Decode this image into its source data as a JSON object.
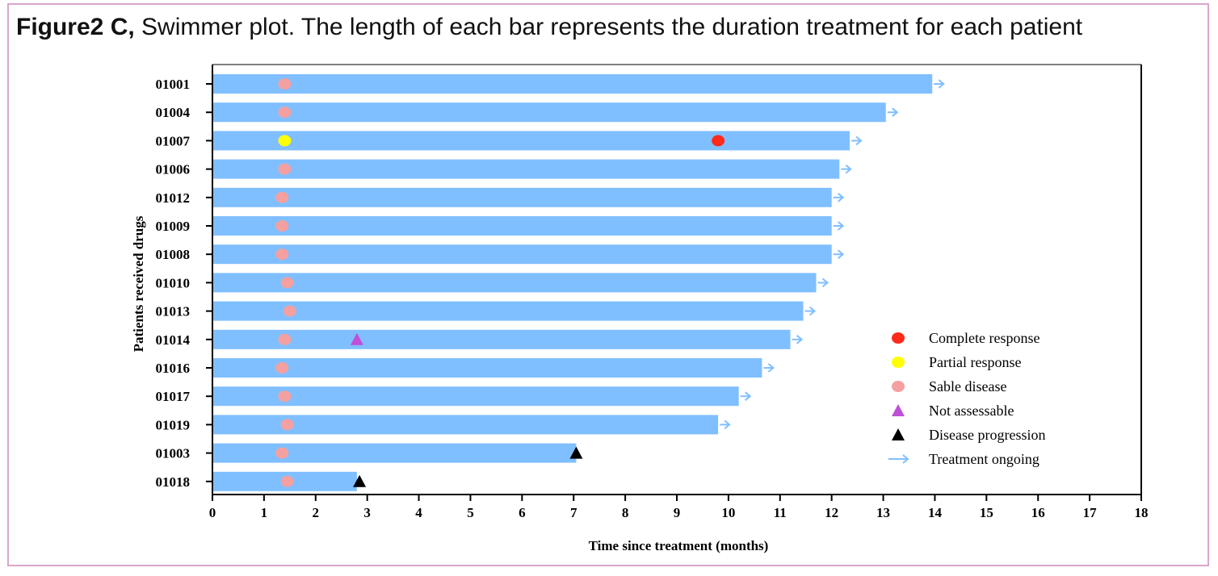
{
  "caption": {
    "label": "Figure2 C,",
    "text": "Swimmer plot. The length of each bar represents the duration treatment for each patient"
  },
  "chart_data": {
    "type": "bar",
    "orientation": "horizontal",
    "xlabel": "Time since treatment (months)",
    "ylabel": "Patients received drugs",
    "xlim": [
      0,
      18
    ],
    "xticks": [
      0,
      1,
      2,
      3,
      4,
      5,
      6,
      7,
      8,
      9,
      10,
      11,
      12,
      13,
      14,
      15,
      16,
      17,
      18
    ],
    "grid": false,
    "legend_position": "lower-right",
    "bar_color": "#80bfff",
    "categories": [
      "01001",
      "01004",
      "01007",
      "01006",
      "01012",
      "01009",
      "01008",
      "01010",
      "01013",
      "01014",
      "01016",
      "01017",
      "01019",
      "01003",
      "01018"
    ],
    "values": [
      13.95,
      13.05,
      12.35,
      12.15,
      12.0,
      12.0,
      12.0,
      11.7,
      11.45,
      11.2,
      10.65,
      10.2,
      9.8,
      7.05,
      2.8
    ],
    "ongoing": [
      true,
      true,
      true,
      true,
      true,
      true,
      true,
      true,
      true,
      true,
      true,
      true,
      true,
      false,
      false
    ],
    "events": [
      {
        "patient": "01001",
        "type": "stable",
        "time": 1.4
      },
      {
        "patient": "01004",
        "type": "stable",
        "time": 1.4
      },
      {
        "patient": "01007",
        "type": "partial",
        "time": 1.4
      },
      {
        "patient": "01007",
        "type": "complete",
        "time": 9.8
      },
      {
        "patient": "01006",
        "type": "stable",
        "time": 1.4
      },
      {
        "patient": "01012",
        "type": "stable",
        "time": 1.35
      },
      {
        "patient": "01009",
        "type": "stable",
        "time": 1.35
      },
      {
        "patient": "01008",
        "type": "stable",
        "time": 1.35
      },
      {
        "patient": "01010",
        "type": "stable",
        "time": 1.45
      },
      {
        "patient": "01013",
        "type": "stable",
        "time": 1.5
      },
      {
        "patient": "01014",
        "type": "stable",
        "time": 1.4
      },
      {
        "patient": "01014",
        "type": "not_assessable",
        "time": 2.8
      },
      {
        "patient": "01016",
        "type": "stable",
        "time": 1.35
      },
      {
        "patient": "01017",
        "type": "stable",
        "time": 1.4
      },
      {
        "patient": "01019",
        "type": "stable",
        "time": 1.45
      },
      {
        "patient": "01003",
        "type": "stable",
        "time": 1.35
      },
      {
        "patient": "01003",
        "type": "progression",
        "time": 7.05
      },
      {
        "patient": "01018",
        "type": "stable",
        "time": 1.45
      },
      {
        "patient": "01018",
        "type": "progression",
        "time": 2.85
      }
    ],
    "legend": [
      {
        "key": "complete",
        "label": "Complete response",
        "marker": "circle",
        "color": "#ff2a1a"
      },
      {
        "key": "partial",
        "label": "Partial response",
        "marker": "circle",
        "color": "#ffff00"
      },
      {
        "key": "stable",
        "label": "Sable disease",
        "marker": "circle",
        "color": "#f4a0a0"
      },
      {
        "key": "not_assessable",
        "label": "Not assessable",
        "marker": "triangle",
        "color": "#c04fd8"
      },
      {
        "key": "progression",
        "label": "Disease progression",
        "marker": "triangle",
        "color": "#000000"
      },
      {
        "key": "ongoing",
        "label": "Treatment ongoing",
        "marker": "arrow",
        "color": "#80bfff"
      }
    ]
  }
}
